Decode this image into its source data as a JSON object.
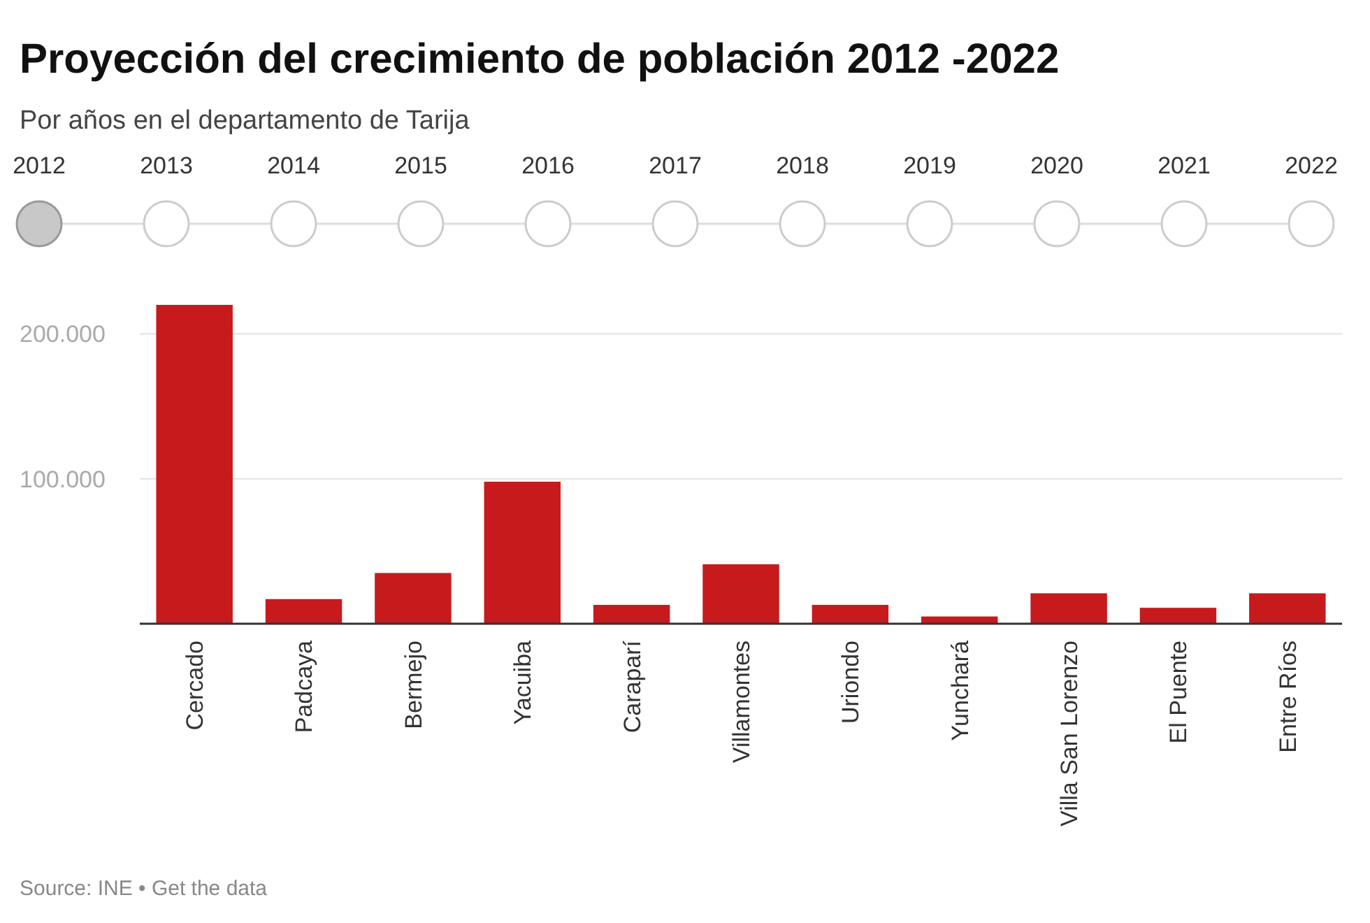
{
  "chart_data": {
    "type": "bar",
    "title": "Proyección del crecimiento de población 2012 -2022",
    "subtitle": "Por años en el departamento de Tarija",
    "categories": [
      "Cercado",
      "Padcaya",
      "Bermejo",
      "Yacuiba",
      "Caraparí",
      "Villamontes",
      "Uriondo",
      "Yunchará",
      "Villa San Lorenzo",
      "El Puente",
      "Entre Ríos"
    ],
    "values": [
      220000,
      17000,
      35000,
      98000,
      13000,
      41000,
      13000,
      5000,
      21000,
      11000,
      21000
    ],
    "color": "#c71a1c",
    "ylim": [
      0,
      220000
    ],
    "yticks": [
      {
        "value": 0,
        "label": null
      },
      {
        "value": 100000,
        "label": "100.000"
      },
      {
        "value": 200000,
        "label": "200.000"
      }
    ],
    "grid": "y",
    "annotations": [
      "2012",
      "2013",
      "2014",
      "2015",
      "2016",
      "2017",
      "2018",
      "2019",
      "2020",
      "2021",
      "2022",
      "Source: INE • Get the data"
    ]
  }
}
